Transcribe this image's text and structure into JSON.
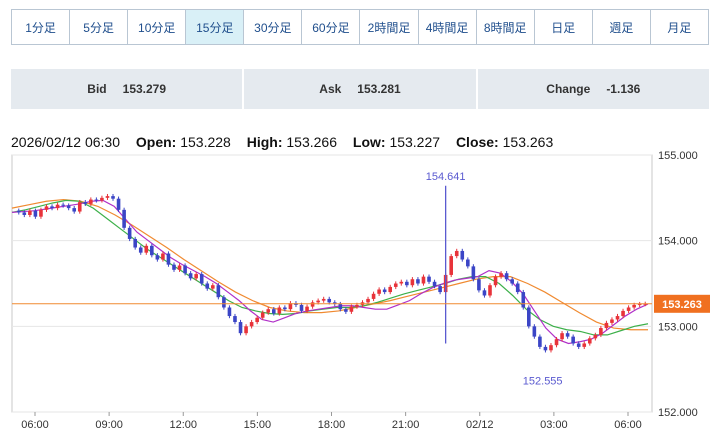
{
  "timeframes": [
    {
      "label": "1分足",
      "active": false
    },
    {
      "label": "5分足",
      "active": false
    },
    {
      "label": "10分足",
      "active": false
    },
    {
      "label": "15分足",
      "active": true
    },
    {
      "label": "30分足",
      "active": false
    },
    {
      "label": "60分足",
      "active": false
    },
    {
      "label": "2時間足",
      "active": false
    },
    {
      "label": "4時間足",
      "active": false
    },
    {
      "label": "8時間足",
      "active": false
    },
    {
      "label": "日足",
      "active": false
    },
    {
      "label": "週足",
      "active": false
    },
    {
      "label": "月足",
      "active": false
    }
  ],
  "quote": {
    "bid_label": "Bid",
    "bid": "153.279",
    "ask_label": "Ask",
    "ask": "153.281",
    "change_label": "Change",
    "change": "-1.136"
  },
  "ohlc": {
    "datetime": "2026/02/12 06:30",
    "open_label": "Open:",
    "open": "153.228",
    "high_label": "High:",
    "high": "153.266",
    "low_label": "Low:",
    "low": "153.227",
    "close_label": "Close:",
    "close": "153.263"
  },
  "colors": {
    "up": "#e8333a",
    "down": "#3b45c6",
    "ma_fast": "#b030c8",
    "ma_mid": "#3db04a",
    "ma_slow": "#f08a30",
    "price_line": "#f08a30",
    "spike": "#5a5ad0",
    "badge": "#f07020"
  },
  "chart_data": {
    "type": "candlestick",
    "ylim": [
      152.0,
      155.0
    ],
    "yticks": [
      "155.000",
      "154.000",
      "153.000",
      "152.000"
    ],
    "xticks": [
      "06:00",
      "09:00",
      "12:00",
      "15:00",
      "18:00",
      "21:00",
      "02/12",
      "03:00",
      "06:00"
    ],
    "last_price": "153.263",
    "annotations": {
      "high_label": "154.641",
      "low_label": "152.555"
    },
    "closes": [
      154.33,
      154.3,
      154.35,
      154.28,
      154.36,
      154.4,
      154.38,
      154.42,
      154.41,
      154.38,
      154.34,
      154.45,
      154.43,
      154.48,
      154.47,
      154.5,
      154.52,
      154.49,
      154.36,
      154.15,
      154.02,
      153.92,
      153.86,
      153.94,
      153.83,
      153.78,
      153.85,
      153.72,
      153.66,
      153.71,
      153.62,
      153.56,
      153.61,
      153.5,
      153.44,
      153.48,
      153.34,
      153.22,
      153.12,
      153.05,
      152.92,
      153.0,
      153.05,
      153.1,
      153.16,
      153.2,
      153.15,
      153.22,
      153.2,
      153.27,
      153.25,
      153.18,
      153.23,
      153.28,
      153.3,
      153.32,
      153.28,
      153.26,
      153.2,
      153.17,
      153.23,
      153.25,
      153.28,
      153.32,
      153.38,
      153.43,
      153.4,
      153.46,
      153.5,
      153.52,
      153.48,
      153.55,
      153.5,
      153.58,
      153.52,
      153.47,
      153.4,
      153.6,
      153.82,
      153.88,
      153.78,
      153.7,
      153.55,
      153.42,
      153.36,
      153.48,
      153.58,
      153.62,
      153.55,
      153.5,
      153.4,
      153.22,
      153.0,
      152.88,
      152.76,
      152.72,
      152.78,
      152.85,
      152.92,
      152.88,
      152.8,
      152.76,
      152.8,
      152.86,
      152.9,
      152.98,
      153.04,
      153.08,
      153.12,
      153.18,
      153.22,
      153.25,
      153.26,
      153.263
    ],
    "ma_fast": [
      154.33,
      154.34,
      154.35,
      154.37,
      154.39,
      154.41,
      154.43,
      154.46,
      154.47,
      154.4,
      154.25,
      154.1,
      154.0,
      153.9,
      153.8,
      153.72,
      153.65,
      153.58,
      153.5,
      153.4,
      153.3,
      153.18,
      153.08,
      153.05,
      153.1,
      153.15,
      153.18,
      153.2,
      153.22,
      153.24,
      153.24,
      153.22,
      153.2,
      153.2,
      153.25,
      153.3,
      153.38,
      153.45,
      153.5,
      153.54,
      153.56,
      153.58,
      153.65,
      153.62,
      153.52,
      153.38,
      153.18,
      152.98,
      152.85,
      152.8,
      152.82,
      152.85,
      152.92,
      153.02,
      153.12,
      153.2,
      153.26
    ],
    "ma_mid": [
      154.33,
      154.36,
      154.4,
      154.44,
      154.47,
      154.46,
      154.38,
      154.26,
      154.14,
      154.02,
      153.9,
      153.8,
      153.7,
      153.6,
      153.5,
      153.4,
      153.3,
      153.22,
      153.18,
      153.15,
      153.14,
      153.15,
      153.18,
      153.2,
      153.22,
      153.22,
      153.24,
      153.28,
      153.33,
      153.38,
      153.42,
      153.46,
      153.5,
      153.55,
      153.58,
      153.58,
      153.5,
      153.36,
      153.2,
      153.08,
      153.0,
      152.96,
      152.94,
      152.9,
      152.9,
      152.95,
      153.0,
      153.03
    ],
    "ma_slow": [
      154.38,
      154.42,
      154.46,
      154.48,
      154.46,
      154.4,
      154.3,
      154.18,
      154.05,
      153.92,
      153.78,
      153.65,
      153.52,
      153.4,
      153.3,
      153.22,
      153.18,
      153.16,
      153.16,
      153.18,
      153.22,
      153.26,
      153.3,
      153.35,
      153.4,
      153.45,
      153.5,
      153.55,
      153.58,
      153.58,
      153.5,
      153.4,
      153.28,
      153.16,
      153.05,
      152.98,
      152.96,
      152.96
    ]
  }
}
